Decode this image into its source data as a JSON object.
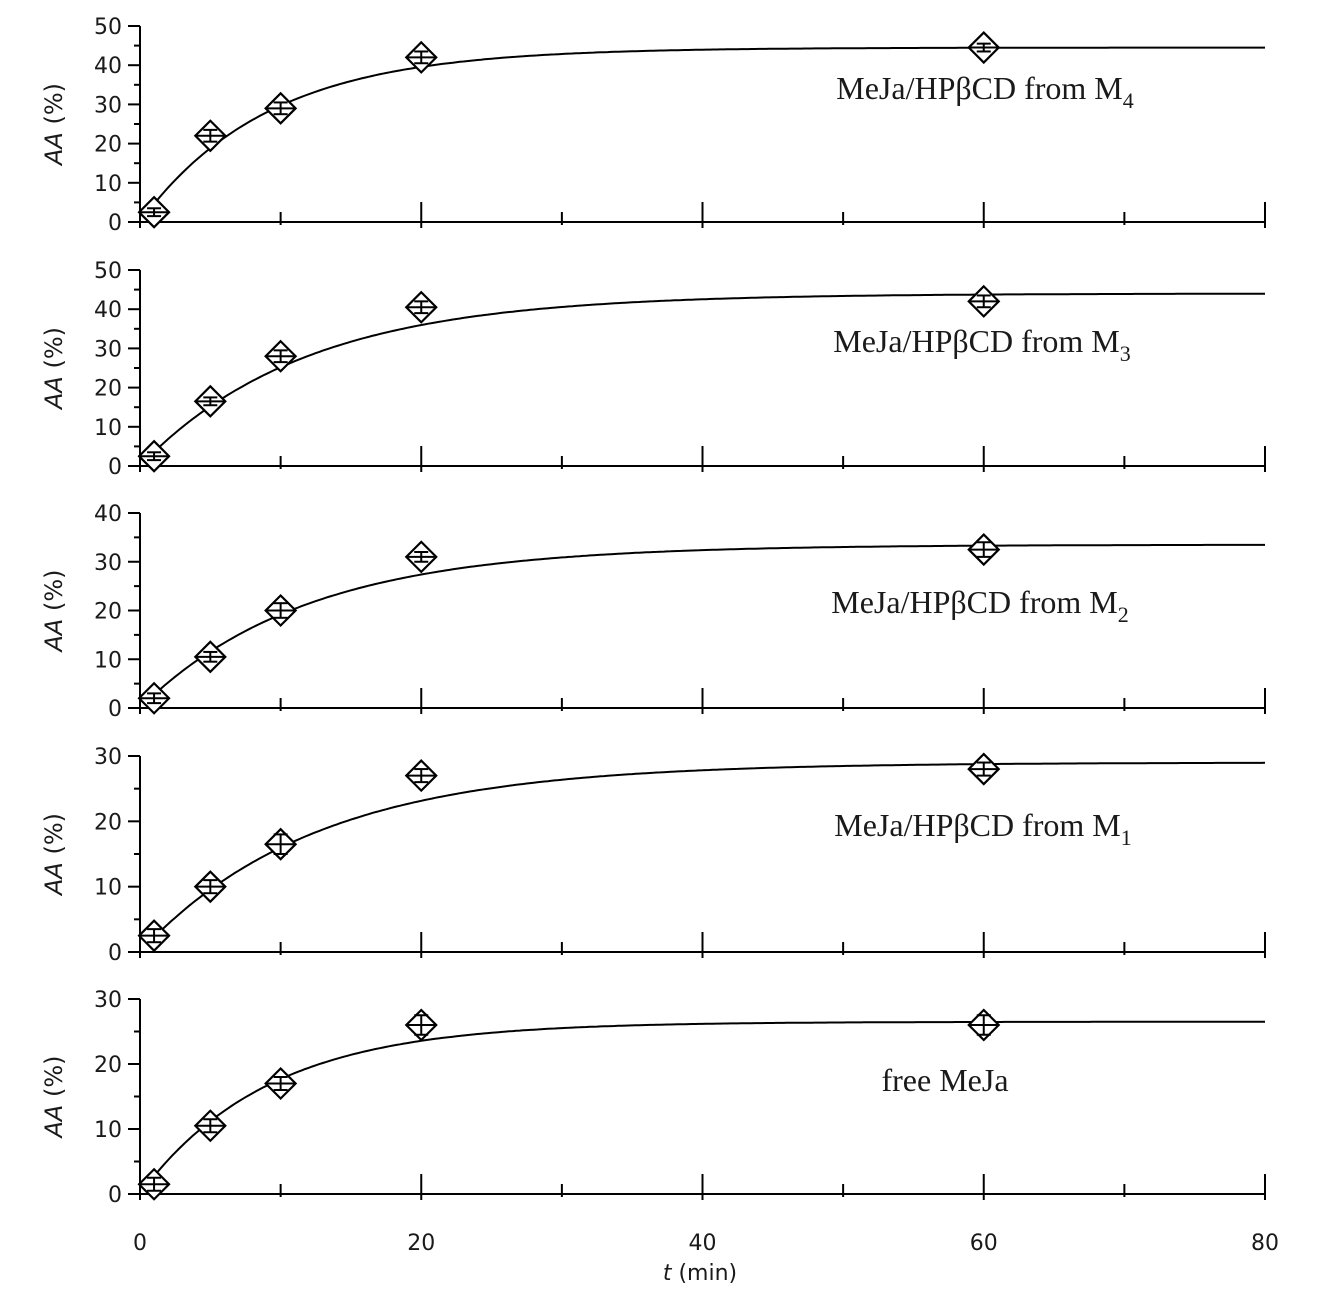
{
  "chart_data": [
    {
      "type": "scatter",
      "annotation": {
        "main": "MeJa/HPβCD from M",
        "subscript": "4"
      },
      "ylabel": {
        "italic": "AA",
        "rest": " (%)"
      },
      "ylim": [
        0,
        50
      ],
      "yticks": [
        0,
        10,
        20,
        30,
        40,
        50
      ],
      "x": [
        1,
        5,
        10,
        20,
        60
      ],
      "y": [
        2.5,
        22,
        29,
        42,
        44.5
      ],
      "yerr": [
        1,
        1.5,
        1.5,
        1.5,
        1
      ],
      "fit": {
        "plateau": 44.5,
        "k": 0.11,
        "x0": 0
      }
    },
    {
      "type": "scatter",
      "annotation": {
        "main": "MeJa/HPβCD from M",
        "subscript": "3"
      },
      "ylabel": {
        "italic": "AA",
        "rest": " (%)"
      },
      "ylim": [
        0,
        50
      ],
      "yticks": [
        0,
        10,
        20,
        30,
        40,
        50
      ],
      "x": [
        1,
        5,
        10,
        20,
        60
      ],
      "y": [
        2.5,
        16.5,
        28,
        40.5,
        42
      ],
      "yerr": [
        1,
        1,
        1.5,
        1.5,
        1.5
      ],
      "fit": {
        "plateau": 44,
        "k": 0.085,
        "x0": 0
      }
    },
    {
      "type": "scatter",
      "annotation": {
        "main": "MeJa/HPβCD from M",
        "subscript": "2"
      },
      "ylabel": {
        "italic": "AA",
        "rest": " (%)"
      },
      "ylim": [
        0,
        40
      ],
      "yticks": [
        0,
        10,
        20,
        30,
        40
      ],
      "x": [
        1,
        5,
        10,
        20,
        60
      ],
      "y": [
        2,
        10.5,
        20,
        31,
        32.5
      ],
      "yerr": [
        1,
        1,
        1.5,
        1,
        1.5
      ],
      "fit": {
        "plateau": 33.5,
        "k": 0.085,
        "x0": 0
      }
    },
    {
      "type": "scatter",
      "annotation": {
        "main": "MeJa/HPβCD from M",
        "subscript": "1"
      },
      "ylabel": {
        "italic": "AA",
        "rest": " (%)"
      },
      "ylim": [
        0,
        30
      ],
      "yticks": [
        0,
        10,
        20,
        30
      ],
      "x": [
        1,
        5,
        10,
        20,
        60
      ],
      "y": [
        2.5,
        10,
        16.5,
        27,
        28
      ],
      "yerr": [
        1,
        1,
        1.5,
        1,
        1
      ],
      "fit": {
        "plateau": 29,
        "k": 0.08,
        "x0": 0
      }
    },
    {
      "type": "scatter",
      "annotation": {
        "main": "free MeJa",
        "subscript": ""
      },
      "ylabel": {
        "italic": "AA",
        "rest": " (%)"
      },
      "ylim": [
        0,
        30
      ],
      "yticks": [
        0,
        10,
        20,
        30
      ],
      "x": [
        1,
        5,
        10,
        20,
        60
      ],
      "y": [
        1.5,
        10.5,
        17,
        26,
        26
      ],
      "yerr": [
        1,
        1,
        1,
        1.5,
        1.5
      ],
      "fit": {
        "plateau": 26.5,
        "k": 0.11,
        "x0": 0
      }
    }
  ],
  "xaxis": {
    "xlim": [
      0,
      80
    ],
    "xticks": [
      0,
      20,
      40,
      60,
      80
    ],
    "label_italic": "t",
    "label_rest": " (min)"
  }
}
